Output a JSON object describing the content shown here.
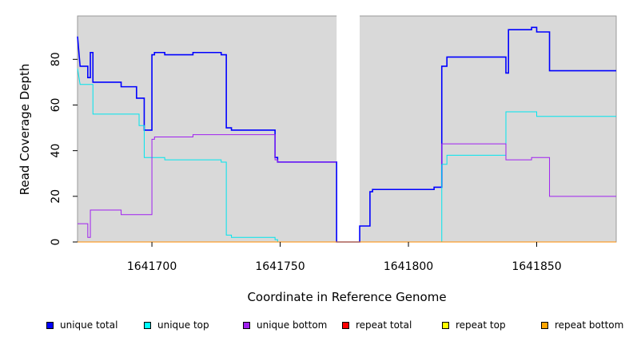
{
  "chart_data": {
    "type": "line",
    "xlabel": "Coordinate in Reference Genome",
    "ylabel": "Read Coverage Depth",
    "xlim": [
      1641671,
      1641881
    ],
    "ylim": [
      0,
      99
    ],
    "xticks": [
      1641700,
      1641750,
      1641800,
      1641850
    ],
    "yticks": [
      0,
      20,
      40,
      60,
      80
    ],
    "gap": [
      1641772,
      1641781
    ],
    "background": "#d9d9d9",
    "series": [
      {
        "name": "unique total",
        "color": "#0000ff",
        "width": 1.6,
        "points": [
          [
            1641671,
            90
          ],
          [
            1641672,
            77
          ],
          [
            1641675,
            77
          ],
          [
            1641675,
            72
          ],
          [
            1641676,
            72
          ],
          [
            1641676,
            83
          ],
          [
            1641677,
            83
          ],
          [
            1641677,
            70
          ],
          [
            1641688,
            70
          ],
          [
            1641688,
            68
          ],
          [
            1641694,
            68
          ],
          [
            1641694,
            63
          ],
          [
            1641697,
            63
          ],
          [
            1641697,
            49
          ],
          [
            1641700,
            49
          ],
          [
            1641700,
            82
          ],
          [
            1641701,
            82
          ],
          [
            1641701,
            83
          ],
          [
            1641705,
            83
          ],
          [
            1641705,
            82
          ],
          [
            1641716,
            82
          ],
          [
            1641716,
            83
          ],
          [
            1641727,
            83
          ],
          [
            1641727,
            82
          ],
          [
            1641729,
            82
          ],
          [
            1641729,
            50
          ],
          [
            1641731,
            50
          ],
          [
            1641731,
            49
          ],
          [
            1641748,
            49
          ],
          [
            1641748,
            37
          ],
          [
            1641749,
            37
          ],
          [
            1641749,
            35
          ],
          [
            1641772,
            35
          ],
          [
            1641772,
            0
          ],
          [
            1641781,
            0
          ],
          [
            1641781,
            7
          ],
          [
            1641785,
            7
          ],
          [
            1641785,
            22
          ],
          [
            1641786,
            22
          ],
          [
            1641786,
            23
          ],
          [
            1641810,
            23
          ],
          [
            1641810,
            24
          ],
          [
            1641813,
            24
          ],
          [
            1641813,
            77
          ],
          [
            1641815,
            77
          ],
          [
            1641815,
            81
          ],
          [
            1641838,
            81
          ],
          [
            1641838,
            74
          ],
          [
            1641839,
            74
          ],
          [
            1641839,
            93
          ],
          [
            1641848,
            93
          ],
          [
            1641848,
            94
          ],
          [
            1641850,
            94
          ],
          [
            1641850,
            92
          ],
          [
            1641855,
            92
          ],
          [
            1641855,
            75
          ],
          [
            1641881,
            75
          ]
        ]
      },
      {
        "name": "unique top",
        "color": "#00e5ee",
        "width": 1,
        "points": [
          [
            1641671,
            76
          ],
          [
            1641672,
            69
          ],
          [
            1641677,
            69
          ],
          [
            1641677,
            56
          ],
          [
            1641695,
            56
          ],
          [
            1641695,
            51
          ],
          [
            1641697,
            51
          ],
          [
            1641697,
            37
          ],
          [
            1641705,
            37
          ],
          [
            1641705,
            36
          ],
          [
            1641727,
            36
          ],
          [
            1641727,
            35
          ],
          [
            1641729,
            35
          ],
          [
            1641729,
            3
          ],
          [
            1641731,
            3
          ],
          [
            1641731,
            2
          ],
          [
            1641748,
            2
          ],
          [
            1641748,
            1
          ],
          [
            1641749,
            1
          ],
          [
            1641749,
            0
          ],
          [
            1641772,
            0
          ]
        ]
      },
      {
        "name": "unique top",
        "color": "#00e5ee",
        "width": 1,
        "points": [
          [
            1641781,
            0
          ],
          [
            1641813,
            0
          ],
          [
            1641813,
            34
          ],
          [
            1641815,
            34
          ],
          [
            1641815,
            38
          ],
          [
            1641838,
            38
          ],
          [
            1641838,
            57
          ],
          [
            1641850,
            57
          ],
          [
            1641850,
            55
          ],
          [
            1641881,
            55
          ]
        ]
      },
      {
        "name": "unique bottom",
        "color": "#a020f0",
        "width": 1,
        "points": [
          [
            1641671,
            8
          ],
          [
            1641675,
            8
          ],
          [
            1641675,
            2
          ],
          [
            1641676,
            2
          ],
          [
            1641676,
            14
          ],
          [
            1641688,
            14
          ],
          [
            1641688,
            12
          ],
          [
            1641700,
            12
          ],
          [
            1641700,
            45
          ],
          [
            1641701,
            45
          ],
          [
            1641701,
            46
          ],
          [
            1641716,
            46
          ],
          [
            1641716,
            47
          ],
          [
            1641748,
            47
          ],
          [
            1641748,
            36
          ],
          [
            1641749,
            36
          ],
          [
            1641749,
            35
          ],
          [
            1641772,
            35
          ]
        ]
      },
      {
        "name": "unique bottom",
        "color": "#a020f0",
        "width": 1,
        "points": [
          [
            1641813,
            34
          ],
          [
            1641813,
            43
          ],
          [
            1641838,
            43
          ],
          [
            1641838,
            36
          ],
          [
            1641848,
            36
          ],
          [
            1641848,
            37
          ],
          [
            1641855,
            37
          ],
          [
            1641855,
            20
          ],
          [
            1641881,
            20
          ]
        ]
      },
      {
        "name": "repeat bottom",
        "color": "#ff8c00",
        "width": 1,
        "points": [
          [
            1641671,
            0
          ],
          [
            1641881,
            0
          ]
        ]
      }
    ],
    "legend": {
      "position": "bottom",
      "items": [
        {
          "label": "unique total",
          "color": "#0000ff"
        },
        {
          "label": "unique top",
          "color": "#00ffff"
        },
        {
          "label": "unique bottom",
          "color": "#a020f0"
        },
        {
          "label": "repeat total",
          "color": "#ff0000"
        },
        {
          "label": "repeat top",
          "color": "#ffff00"
        },
        {
          "label": "repeat bottom",
          "color": "#ffa500"
        }
      ]
    }
  }
}
